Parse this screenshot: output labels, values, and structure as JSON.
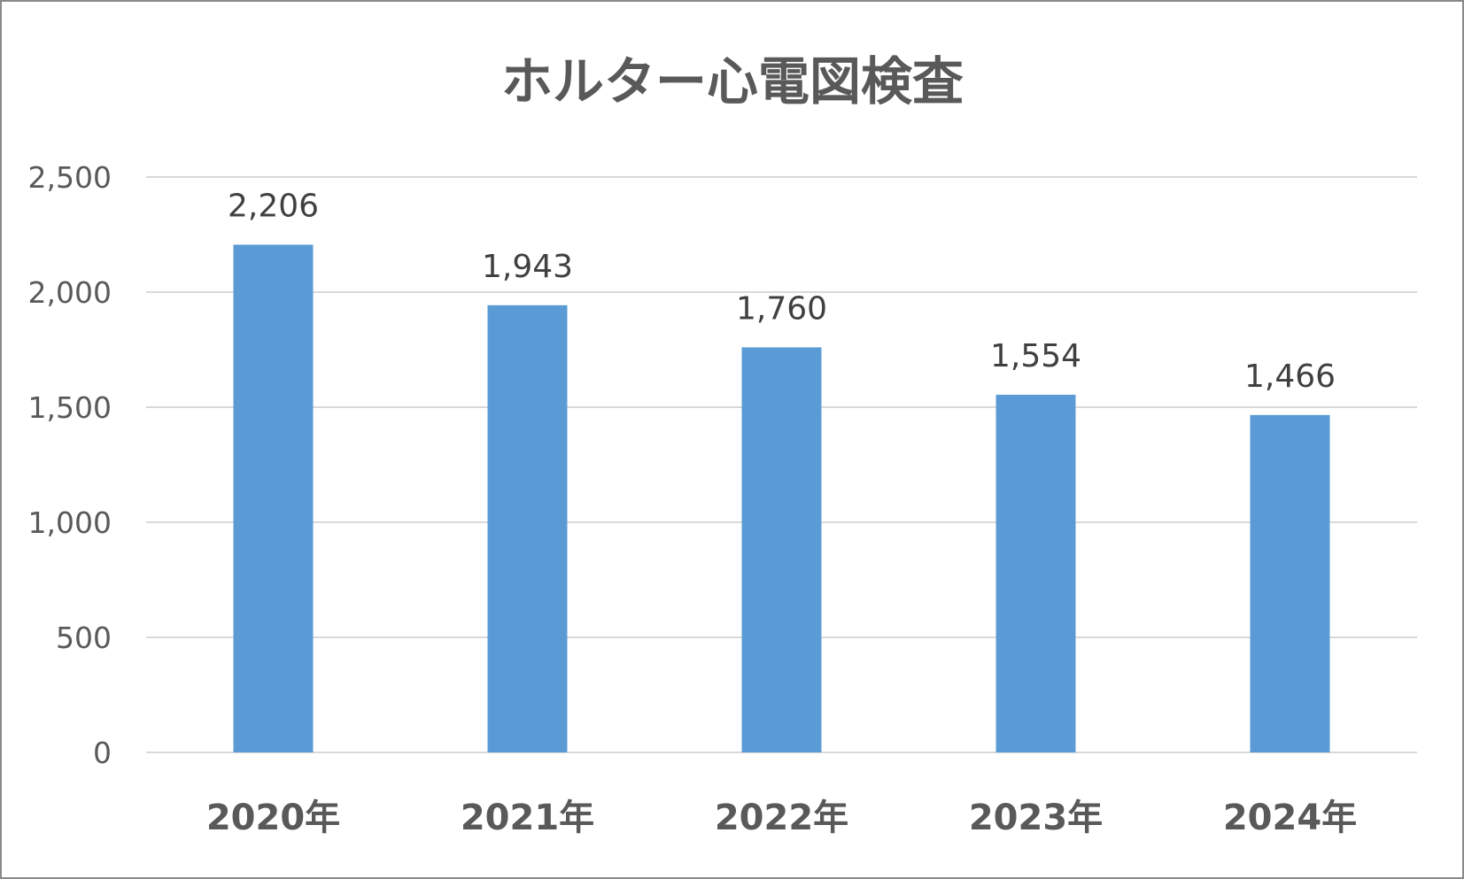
{
  "chart_data": {
    "type": "bar",
    "title": "ホルター心電図検査",
    "categories": [
      "2020年",
      "2021年",
      "2022年",
      "2023年",
      "2024年"
    ],
    "values": [
      2206,
      1943,
      1760,
      1554,
      1466
    ],
    "data_labels": [
      "2,206",
      "1,943",
      "1,760",
      "1,554",
      "1,466"
    ],
    "y_ticks": [
      0,
      500,
      1000,
      1500,
      2000,
      2500
    ],
    "y_tick_labels": [
      "0",
      "500",
      "1,000",
      "1,500",
      "2,000",
      "2,500"
    ],
    "ylim": [
      0,
      2500
    ],
    "grid": true,
    "legend": "none",
    "bar_color": "#5b9bd5",
    "grid_color": "#d9d9d9"
  }
}
